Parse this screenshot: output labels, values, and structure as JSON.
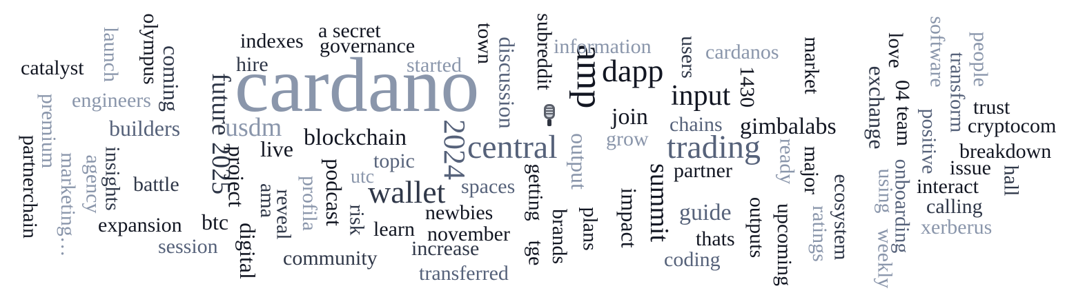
{
  "word_cloud": {
    "words": [
      {
        "text": "cardano"
      },
      {
        "text": "amp"
      },
      {
        "text": "trading"
      },
      {
        "text": "central"
      },
      {
        "text": "wallet"
      },
      {
        "text": "dapp"
      },
      {
        "text": "2024"
      },
      {
        "text": "input"
      },
      {
        "text": "summit"
      },
      {
        "text": "future 2025"
      },
      {
        "text": "usdm"
      },
      {
        "text": "blockchain"
      },
      {
        "text": "gimbalabs"
      },
      {
        "text": "information"
      },
      {
        "text": "coming"
      },
      {
        "text": "builders"
      },
      {
        "text": "discussion"
      },
      {
        "text": "cardanos"
      },
      {
        "text": "indexes"
      },
      {
        "text": "governance"
      },
      {
        "text": "a secret"
      },
      {
        "text": "catalyst"
      },
      {
        "text": "engineers"
      },
      {
        "text": "hire"
      },
      {
        "text": "started"
      },
      {
        "text": "launch"
      },
      {
        "text": "olympus"
      },
      {
        "text": "premium"
      },
      {
        "text": "partnerchain"
      },
      {
        "text": "marketing…"
      },
      {
        "text": "agency"
      },
      {
        "text": "insights"
      },
      {
        "text": "battle"
      },
      {
        "text": "expansion"
      },
      {
        "text": "session"
      },
      {
        "text": "btc"
      },
      {
        "text": "project"
      },
      {
        "text": "digital"
      },
      {
        "text": "ama"
      },
      {
        "text": "live"
      },
      {
        "text": "reveal"
      },
      {
        "text": "profila"
      },
      {
        "text": "podcast"
      },
      {
        "text": "risk"
      },
      {
        "text": "utc"
      },
      {
        "text": "topic"
      },
      {
        "text": "learn"
      },
      {
        "text": "community"
      },
      {
        "text": "newbies"
      },
      {
        "text": "november"
      },
      {
        "text": "increase"
      },
      {
        "text": "transferred"
      },
      {
        "text": "spaces"
      },
      {
        "text": "getting"
      },
      {
        "text": "tge"
      },
      {
        "text": "town"
      },
      {
        "text": "subreddit"
      },
      {
        "text": "brands"
      },
      {
        "text": "output"
      },
      {
        "text": "plans"
      },
      {
        "text": "join"
      },
      {
        "text": "grow"
      },
      {
        "text": "impact"
      },
      {
        "text": "users"
      },
      {
        "text": "1430"
      },
      {
        "text": "chains"
      },
      {
        "text": "partner"
      },
      {
        "text": "guide"
      },
      {
        "text": "thats"
      },
      {
        "text": "coding"
      },
      {
        "text": "outputs"
      },
      {
        "text": "ready"
      },
      {
        "text": "major"
      },
      {
        "text": "upcoming"
      },
      {
        "text": "ratings"
      },
      {
        "text": "market"
      },
      {
        "text": "ecosystem"
      },
      {
        "text": "exchange"
      },
      {
        "text": "using"
      },
      {
        "text": "weekly"
      },
      {
        "text": "love"
      },
      {
        "text": "04"
      },
      {
        "text": "team"
      },
      {
        "text": "onboarding"
      },
      {
        "text": "software"
      },
      {
        "text": "positive"
      },
      {
        "text": "transform"
      },
      {
        "text": "people"
      },
      {
        "text": "trust"
      },
      {
        "text": "cryptocom"
      },
      {
        "text": "breakdown"
      },
      {
        "text": "issue"
      },
      {
        "text": "hall"
      },
      {
        "text": "interact"
      },
      {
        "text": "calling"
      },
      {
        "text": "xerberus"
      }
    ],
    "colors": {
      "darkest": "#121622",
      "dark": "#2f3748",
      "mid": "#56627a",
      "light": "#8a96ab"
    },
    "emoji_icon": "microphone-icon"
  }
}
